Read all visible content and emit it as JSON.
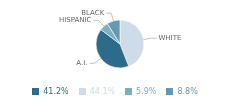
{
  "chart_data": {
    "type": "pie",
    "categories": [
      "WHITE",
      "A.I.",
      "HISPANIC",
      "BLACK"
    ],
    "values": [
      44.1,
      41.2,
      5.9,
      8.8
    ],
    "value_labels": [
      "44.1%",
      "41.2%",
      "5.9%",
      "8.8%"
    ],
    "colors": [
      "#cddce8",
      "#2d6b8a",
      "#7aafc8",
      "#6699b0"
    ],
    "legend": "bottom"
  }
}
